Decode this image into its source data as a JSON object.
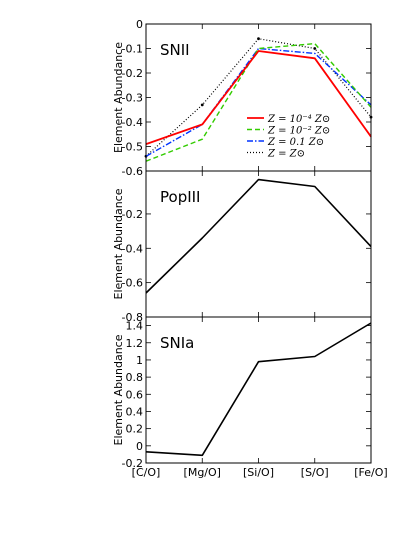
{
  "figure": {
    "x_categories": [
      "[C/O]",
      "[Mg/O]",
      "[Si/O]",
      "[S/O]",
      "[Fe/O]"
    ]
  },
  "chart_data": [
    {
      "type": "line",
      "title": "SNII",
      "ylabel": "Element Abundance",
      "ylim": [
        -0.6,
        0
      ],
      "yticks": [
        0,
        -0.1,
        -0.2,
        -0.3,
        -0.4,
        -0.5,
        -0.6
      ],
      "ytick_labels": [
        "0",
        "-0.1",
        "-0.2",
        "-0.3",
        "-0.4",
        "-0.5",
        "-0.6"
      ],
      "categories": [
        "[C/O]",
        "[Mg/O]",
        "[Si/O]",
        "[S/O]",
        "[Fe/O]"
      ],
      "legend_position": "center-right",
      "series": [
        {
          "name": "Z = 10⁻⁴ Z⊙",
          "values": [
            -0.49,
            -0.41,
            -0.11,
            -0.14,
            -0.46
          ],
          "color": "#ff0000",
          "dash": "none",
          "width": 1.8
        },
        {
          "name": "Z = 10⁻² Z⊙",
          "values": [
            -0.56,
            -0.47,
            -0.1,
            -0.08,
            -0.34
          ],
          "color": "#33cc00",
          "dash": "5,3",
          "width": 1.4
        },
        {
          "name": "Z = 0.1 Z⊙",
          "values": [
            -0.54,
            -0.41,
            -0.1,
            -0.12,
            -0.33
          ],
          "color": "#0033ff",
          "dash": "6,2,1.5,2",
          "width": 1.4
        },
        {
          "name": "Z = Z⊙",
          "values": [
            -0.54,
            -0.33,
            -0.06,
            -0.1,
            -0.38
          ],
          "color": "#000000",
          "dash": "1,2",
          "width": 1.2
        }
      ]
    },
    {
      "type": "line",
      "title": "PopIII",
      "ylabel": "Element Abundance",
      "ylim": [
        -0.8,
        0.05
      ],
      "yticks": [
        -0.2,
        -0.4,
        -0.6,
        -0.8
      ],
      "ytick_labels": [
        "-0.2",
        "-0.4",
        "-0.6",
        "-0.8"
      ],
      "categories": [
        "[C/O]",
        "[Mg/O]",
        "[Si/O]",
        "[S/O]",
        "[Fe/O]"
      ],
      "series": [
        {
          "values": [
            -0.66,
            -0.34,
            0.0,
            -0.04,
            -0.39
          ],
          "color": "#000000",
          "dash": "none",
          "width": 1.6
        }
      ]
    },
    {
      "type": "line",
      "title": "SNIa",
      "ylabel": "Element Abundance",
      "ylim": [
        -0.2,
        1.5
      ],
      "yticks": [
        1.4,
        1.2,
        1,
        0.8,
        0.6,
        0.4,
        0.2,
        0,
        -0.2
      ],
      "ytick_labels": [
        "1.4",
        "1.2",
        "1",
        "0.8",
        "0.6",
        "0.4",
        "0.2",
        "0",
        "-0.2"
      ],
      "categories": [
        "[C/O]",
        "[Mg/O]",
        "[Si/O]",
        "[S/O]",
        "[Fe/O]"
      ],
      "series": [
        {
          "values": [
            -0.07,
            -0.11,
            0.98,
            1.04,
            1.43
          ],
          "color": "#000000",
          "dash": "none",
          "width": 1.6
        }
      ]
    }
  ]
}
